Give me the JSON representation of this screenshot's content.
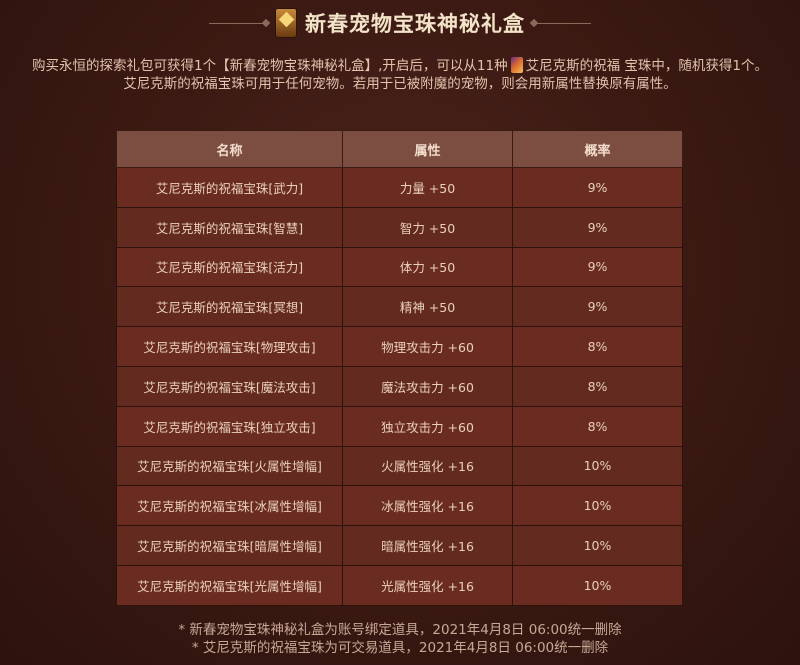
{
  "title": "新春宠物宝珠神秘礼盒",
  "icon_label": "宝珠",
  "description": {
    "line1_before": "购买永恒的探索礼包可获得1个【新春宠物宝珠神秘礼盒】,开启后，可以从11种",
    "line1_after": "艾尼克斯的祝福 宝珠中，随机获得1个。",
    "line2": "艾尼克斯的祝福宝珠可用于任何宠物。若用于已被附魔的宠物，则会用新属性替换原有属性。"
  },
  "table": {
    "headers": [
      "名称",
      "属性",
      "概率"
    ],
    "rows": [
      [
        "艾尼克斯的祝福宝珠[武力]",
        "力量 +50",
        "9%"
      ],
      [
        "艾尼克斯的祝福宝珠[智慧]",
        "智力 +50",
        "9%"
      ],
      [
        "艾尼克斯的祝福宝珠[活力]",
        "体力 +50",
        "9%"
      ],
      [
        "艾尼克斯的祝福宝珠[冥想]",
        "精神 +50",
        "9%"
      ],
      [
        "艾尼克斯的祝福宝珠[物理攻击]",
        "物理攻击力 +60",
        "8%"
      ],
      [
        "艾尼克斯的祝福宝珠[魔法攻击]",
        "魔法攻击力 +60",
        "8%"
      ],
      [
        "艾尼克斯的祝福宝珠[独立攻击]",
        "独立攻击力 +60",
        "8%"
      ],
      [
        "艾尼克斯的祝福宝珠[火属性增幅]",
        "火属性强化 +16",
        "10%"
      ],
      [
        "艾尼克斯的祝福宝珠[冰属性增幅]",
        "冰属性强化 +16",
        "10%"
      ],
      [
        "艾尼克斯的祝福宝珠[暗属性增幅]",
        "暗属性强化 +16",
        "10%"
      ],
      [
        "艾尼克斯的祝福宝珠[光属性增幅]",
        "光属性强化 +16",
        "10%"
      ]
    ]
  },
  "notes": [
    "* 新春宠物宝珠神秘礼盒为账号绑定道具，2021年4月8日 06:00统一删除",
    "* 艾尼克斯的祝福宝珠为可交易道具，2021年4月8日 06:00统一删除"
  ]
}
